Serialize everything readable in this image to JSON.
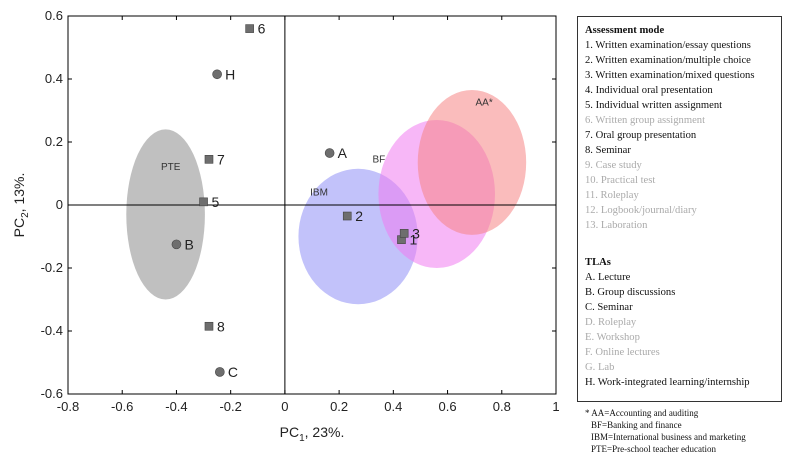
{
  "chart_data": {
    "type": "scatter",
    "xlabel": "PC",
    "xlabel_sub": "1",
    "xlabel_suffix": ", 23%.",
    "ylabel": "PC",
    "ylabel_sub": "2",
    "ylabel_suffix": ", 13%.",
    "xlim": [
      -0.8,
      1
    ],
    "ylim": [
      -0.6,
      0.6
    ],
    "xticks": [
      "-0.8",
      "-0.6",
      "-0.4",
      "-0.2",
      "0",
      "0.2",
      "0.4",
      "0.6",
      "0.8",
      "1"
    ],
    "yticks": [
      "0.6",
      "0.4",
      "0.2",
      "0",
      "-0.2",
      "-0.4",
      "-0.6"
    ],
    "assessment_points": [
      {
        "label": "1",
        "x": 0.43,
        "y": -0.11
      },
      {
        "label": "2",
        "x": 0.23,
        "y": -0.035
      },
      {
        "label": "3",
        "x": 0.44,
        "y": -0.09
      },
      {
        "label": "5",
        "x": -0.3,
        "y": 0.01
      },
      {
        "label": "6",
        "x": -0.13,
        "y": 0.56
      },
      {
        "label": "7",
        "x": -0.28,
        "y": 0.145
      },
      {
        "label": "8",
        "x": -0.28,
        "y": -0.385
      }
    ],
    "tla_points": [
      {
        "label": "A",
        "x": 0.165,
        "y": 0.165
      },
      {
        "label": "B",
        "x": -0.4,
        "y": -0.125
      },
      {
        "label": "C",
        "x": -0.24,
        "y": -0.53
      },
      {
        "label": "H",
        "x": -0.25,
        "y": 0.415
      }
    ],
    "groups": [
      {
        "label": "PTE",
        "cx": -0.44,
        "cy": -0.03,
        "rx": 0.145,
        "ry": 0.27,
        "color": "#8c8c8c"
      },
      {
        "label": "IBM",
        "cx": 0.27,
        "cy": -0.1,
        "rx": 0.22,
        "ry": 0.215,
        "color": "#8f8ff5"
      },
      {
        "label": "BF",
        "cx": 0.56,
        "cy": 0.035,
        "rx": 0.215,
        "ry": 0.235,
        "color": "#f07cf0"
      },
      {
        "label": "AA*",
        "cx": 0.69,
        "cy": 0.135,
        "rx": 0.2,
        "ry": 0.23,
        "color": "#f58585"
      }
    ]
  },
  "legend": {
    "assessment_title": "Assessment mode",
    "assessment_items": [
      {
        "text": "1. Written examination/essay  questions",
        "faded": false
      },
      {
        "text": "2. Written examination/multiple  choice",
        "faded": false
      },
      {
        "text": "3. Written examination/mixed questions",
        "faded": false
      },
      {
        "text": "4. Individual oral presentation",
        "faded": false
      },
      {
        "text": "5. Individual written assignment",
        "faded": false
      },
      {
        "text": "6. Written group assignment",
        "faded": true
      },
      {
        "text": "7. Oral group presentation",
        "faded": false
      },
      {
        "text": "8. Seminar",
        "faded": false
      },
      {
        "text": "9. Case study",
        "faded": true
      },
      {
        "text": "10. Practical test",
        "faded": true
      },
      {
        "text": "11. Roleplay",
        "faded": true
      },
      {
        "text": "12. Logbook/journal/diary",
        "faded": true
      },
      {
        "text": "13. Laboration",
        "faded": true
      }
    ],
    "tla_title": "TLAs",
    "tla_items": [
      {
        "text": "A. Lecture",
        "faded": false
      },
      {
        "text": "B. Group discussions",
        "faded": false
      },
      {
        "text": "C. Seminar",
        "faded": false
      },
      {
        "text": "D. Roleplay",
        "faded": true
      },
      {
        "text": "E. Workshop",
        "faded": true
      },
      {
        "text": "F. Online lectures",
        "faded": true
      },
      {
        "text": "G. Lab",
        "faded": true
      },
      {
        "text": "H. Work-integrated learning/internship",
        "faded": false
      }
    ]
  },
  "notes": [
    "* AA=Accounting  and auditing",
    "BF=Banking  and finance",
    "IBM=International business and marketing",
    "PTE=Pre-school teacher education"
  ]
}
